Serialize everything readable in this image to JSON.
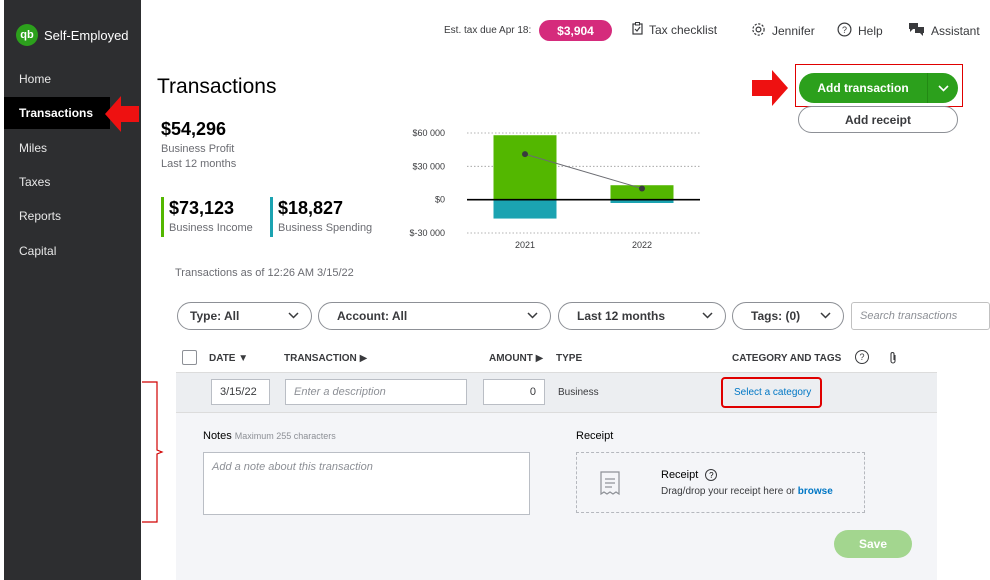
{
  "app": {
    "name": "Self-Employed",
    "logo_text": "qb"
  },
  "sidebar": {
    "items": [
      {
        "label": "Home"
      },
      {
        "label": "Transactions"
      },
      {
        "label": "Miles"
      },
      {
        "label": "Taxes"
      },
      {
        "label": "Reports"
      },
      {
        "label": "Capital"
      }
    ]
  },
  "topbar": {
    "est_tax_label": "Est. tax due Apr 18:",
    "est_tax_value": "$3,904",
    "tax_checklist": "Tax checklist",
    "user": "Jennifer",
    "help": "Help",
    "assistant": "Assistant"
  },
  "page": {
    "title": "Transactions"
  },
  "stats": {
    "profit_value": "$54,296",
    "profit_label": "Business Profit",
    "profit_period": "Last 12 months",
    "income_value": "$73,123",
    "income_label": "Business Income",
    "spending_value": "$18,827",
    "spending_label": "Business Spending",
    "income_color": "#53b700",
    "spending_color": "#1ba3b1"
  },
  "chart_data": {
    "type": "bar",
    "categories": [
      "2021",
      "2022"
    ],
    "series": [
      {
        "name": "Business Income",
        "values": [
          58000,
          13000
        ],
        "color": "#53b700"
      },
      {
        "name": "Business Spending",
        "values": [
          -17000,
          -3000
        ],
        "color": "#1ba3b1"
      },
      {
        "name": "Business Profit",
        "values": [
          41000,
          10000
        ],
        "color": "#393a3d"
      }
    ],
    "y_ticks": [
      "$60 000",
      "$30 000",
      "$0",
      "$-30 000"
    ],
    "ylim": [
      -30000,
      60000
    ],
    "title": "",
    "xlabel": "",
    "ylabel": ""
  },
  "asof": "Transactions as of 12:26 AM 3/15/22",
  "actions": {
    "add_transaction": "Add transaction",
    "add_receipt": "Add receipt"
  },
  "filters": {
    "type": "Type: All",
    "account": "Account: All",
    "period": "Last 12 months",
    "tags": "Tags: (0)",
    "search_placeholder": "Search transactions"
  },
  "table": {
    "headers": {
      "date": "DATE",
      "transaction": "TRANSACTION",
      "amount": "AMOUNT",
      "type": "TYPE",
      "category": "CATEGORY AND TAGS"
    }
  },
  "edit_row": {
    "date": "3/15/22",
    "description_placeholder": "Enter a description",
    "amount": "0",
    "type": "Business",
    "category_link": "Select a category",
    "notes_label": "Notes",
    "notes_max": "Maximum 255 characters",
    "notes_placeholder": "Add a note about this transaction",
    "receipt_label": "Receipt",
    "receipt_title": "Receipt",
    "receipt_help": "Drag/drop your receipt here or",
    "receipt_browse": "browse",
    "save": "Save"
  }
}
